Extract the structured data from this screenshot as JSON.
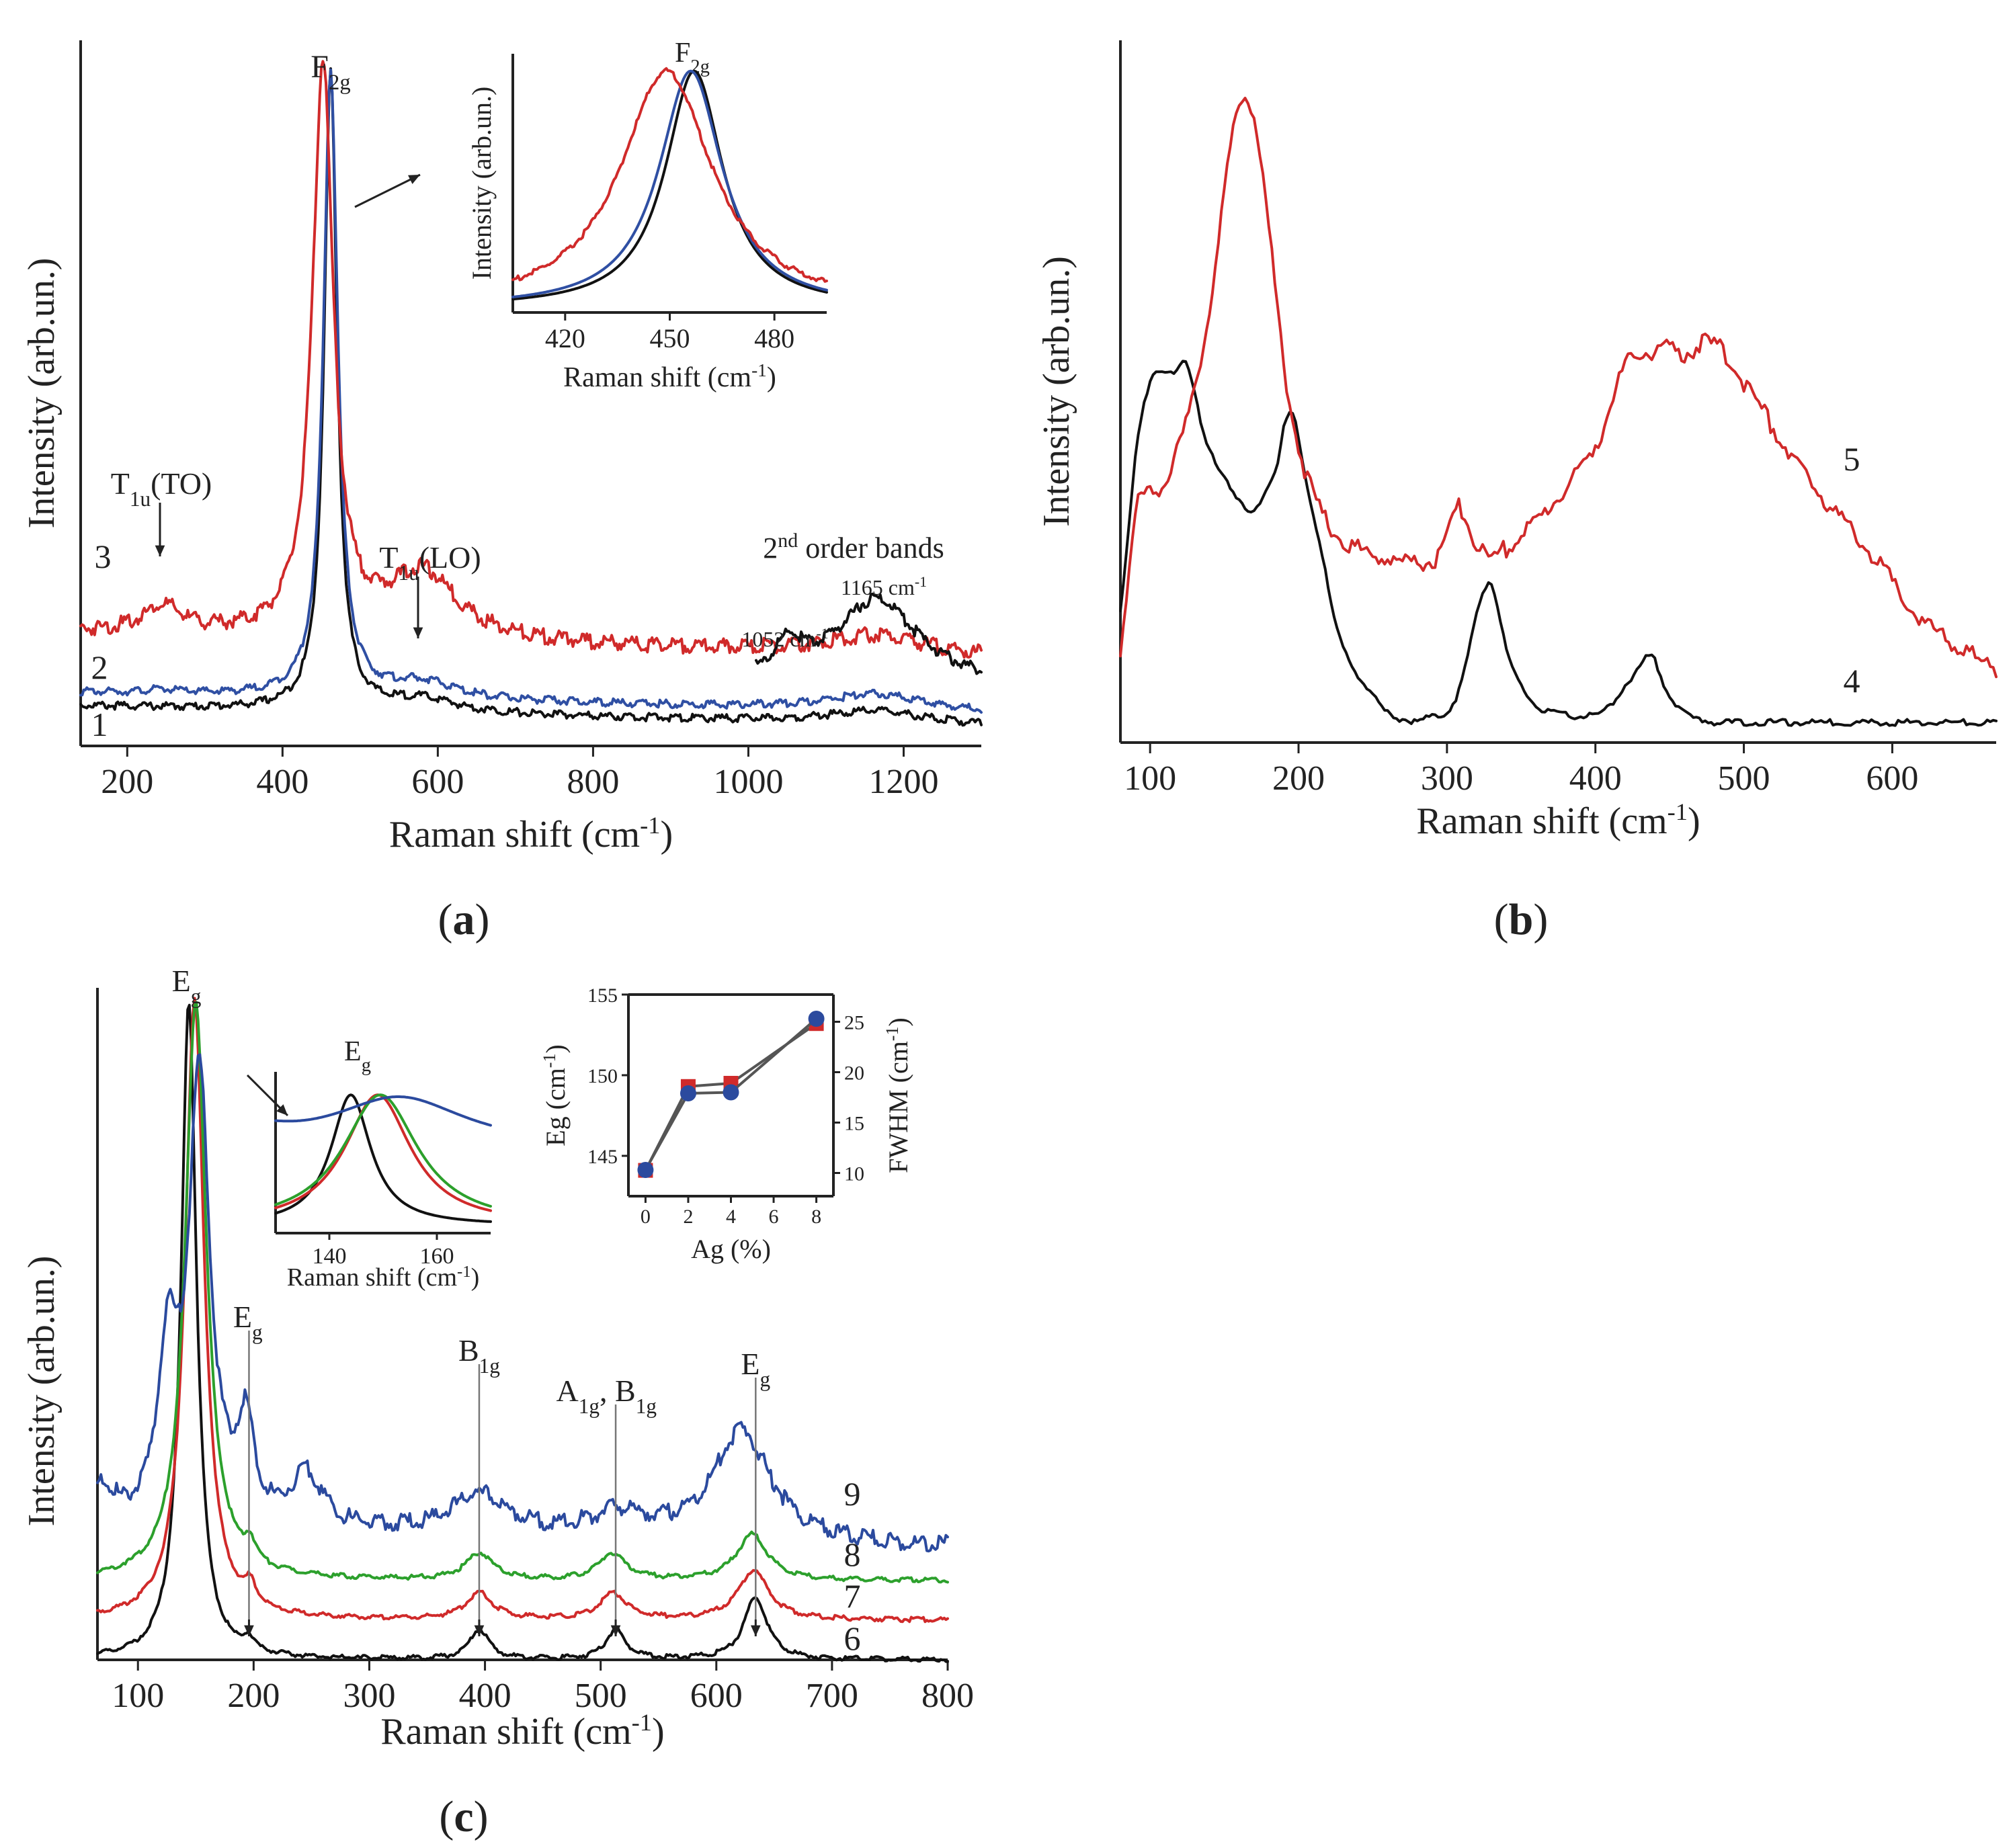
{
  "chart_data": [
    {
      "id": "a",
      "type": "line",
      "panel_label": "(a)",
      "panel_letter": "a",
      "xlabel": "Raman shift (cm⁻¹)",
      "ylabel": "Intensity (arb.un.)",
      "xlim": [
        140,
        1300
      ],
      "ylim": [
        0,
        1.06
      ],
      "xticks": [
        200,
        400,
        600,
        800,
        1000,
        1200
      ],
      "colors": {
        "1": "#111111",
        "2": "#2f4fa3",
        "3": "#d02a2a"
      },
      "series": [
        {
          "name": "1",
          "color": "#111111",
          "offset": 0.02,
          "baseline": 0.04,
          "peak_center": 462,
          "peak_width": 10,
          "peak_height": 0.96,
          "tlu_to": 0.0,
          "tlu_lo": 0.02,
          "second_order": 0.02
        },
        {
          "name": "2",
          "color": "#2f4fa3",
          "offset": 0.04,
          "baseline": 0.04,
          "peak_center": 462,
          "peak_width": 11,
          "peak_height": 0.94,
          "tlu_to": 0.005,
          "tlu_lo": 0.025,
          "second_order": 0.025
        },
        {
          "name": "3",
          "color": "#d02a2a",
          "offset": 0.12,
          "baseline": 0.05,
          "peak_center": 452,
          "peak_width": 16,
          "peak_height": 0.86,
          "tlu_to": 0.04,
          "tlu_lo": 0.1,
          "second_order": 0.03
        }
      ],
      "detail_curve": {
        "name": "2nd order bands",
        "color": "#111111",
        "x": [
          1010,
          1300
        ],
        "peaks": [
          1052,
          1165
        ]
      },
      "annotations": [
        {
          "label": "F2g",
          "main": "F",
          "sub": "2g"
        },
        {
          "label": "T1u(TO)",
          "main": "T",
          "sub": "1u",
          "tail": "(TO)"
        },
        {
          "label": "T1u(LO)",
          "main": "T",
          "sub": "1u",
          "tail": "(LO)"
        },
        {
          "label": "2nd order bands",
          "main": "2",
          "sup": "nd",
          "tail": " order bands"
        },
        {
          "label": "1052 cm-1",
          "main": "1052 cm",
          "sup": "-1"
        },
        {
          "label": "1165 cm-1",
          "main": "1165 cm",
          "sup": "-1"
        }
      ],
      "curve_labels": [
        "1",
        "2",
        "3"
      ],
      "inset": {
        "type": "line",
        "xlabel": "Raman shift (cm⁻¹)",
        "ylabel": "Intensity (arb.un.)",
        "xlim": [
          405,
          495
        ],
        "ylim": [
          0,
          1.05
        ],
        "xticks": [
          420,
          450,
          480
        ],
        "title": "F2g",
        "series": [
          {
            "name": "1",
            "color": "#111111",
            "center": 457,
            "width": 10
          },
          {
            "name": "2",
            "color": "#2f4fa3",
            "center": 456,
            "width": 11
          },
          {
            "name": "3",
            "color": "#d02a2a",
            "center": 449,
            "width": 16
          }
        ]
      }
    },
    {
      "id": "b",
      "type": "line",
      "panel_label": "(b)",
      "panel_letter": "b",
      "xlabel": "Raman shift (cm⁻¹)",
      "ylabel": "Intensity (arb.un.)",
      "xlim": [
        80,
        670
      ],
      "ylim": [
        0,
        1.05
      ],
      "xticks": [
        100,
        200,
        300,
        400,
        500,
        600
      ],
      "series": [
        {
          "name": "4",
          "color": "#111111",
          "x": [
            80,
            90,
            100,
            108,
            115,
            125,
            135,
            150,
            160,
            170,
            180,
            186,
            190,
            196,
            205,
            215,
            225,
            240,
            260,
            280,
            290,
            300,
            310,
            320,
            330,
            340,
            360,
            380,
            400,
            410,
            420,
            428,
            438,
            446,
            460,
            480,
            520,
            600,
            670
          ],
          "y": [
            0.15,
            0.46,
            0.55,
            0.56,
            0.54,
            0.6,
            0.45,
            0.4,
            0.36,
            0.33,
            0.4,
            0.38,
            0.5,
            0.52,
            0.38,
            0.3,
            0.16,
            0.1,
            0.04,
            0.03,
            0.04,
            0.04,
            0.08,
            0.2,
            0.27,
            0.12,
            0.05,
            0.04,
            0.04,
            0.05,
            0.09,
            0.1,
            0.15,
            0.08,
            0.04,
            0.03,
            0.03,
            0.03,
            0.03
          ]
        },
        {
          "name": "5",
          "color": "#d02a2a",
          "x": [
            80,
            90,
            100,
            110,
            120,
            128,
            135,
            145,
            155,
            165,
            175,
            185,
            195,
            200,
            205,
            215,
            230,
            250,
            270,
            290,
            300,
            308,
            315,
            325,
            340,
            360,
            380,
            400,
            410,
            420,
            430,
            445,
            460,
            475,
            485,
            500,
            520,
            540,
            560,
            580,
            600,
            620,
            640,
            660,
            670
          ],
          "y": [
            0.1,
            0.38,
            0.37,
            0.39,
            0.44,
            0.5,
            0.58,
            0.72,
            0.92,
            1.0,
            0.88,
            0.66,
            0.48,
            0.44,
            0.4,
            0.34,
            0.3,
            0.28,
            0.27,
            0.27,
            0.29,
            0.38,
            0.32,
            0.27,
            0.29,
            0.33,
            0.38,
            0.44,
            0.5,
            0.57,
            0.58,
            0.59,
            0.58,
            0.6,
            0.59,
            0.54,
            0.47,
            0.4,
            0.35,
            0.3,
            0.24,
            0.18,
            0.15,
            0.12,
            0.11
          ]
        }
      ],
      "curve_labels": [
        "4",
        "5"
      ]
    },
    {
      "id": "c",
      "type": "line",
      "panel_label": "(c)",
      "panel_letter": "c",
      "xlabel": "Raman shift (cm⁻¹)",
      "ylabel": "Intensity (arb.un.)",
      "xlim": [
        65,
        800
      ],
      "ylim": [
        0,
        1.02
      ],
      "xticks": [
        100,
        200,
        300,
        400,
        500,
        600,
        700,
        800
      ],
      "mode_lines_cm1": [
        196,
        395,
        513,
        634
      ],
      "series": [
        {
          "name": "6",
          "color": "#111111",
          "offset": 0.0,
          "peaks": [
            [
              144,
              1.0,
              8
            ],
            [
              196,
              0.02,
              5
            ],
            [
              395,
              0.045,
              10
            ],
            [
              513,
              0.045,
              10
            ],
            [
              634,
              0.095,
              12
            ]
          ],
          "baseline": 0.0
        },
        {
          "name": "7",
          "color": "#d02a2a",
          "offset": 0.06,
          "peaks": [
            [
              149,
              0.94,
              10
            ],
            [
              197,
              0.03,
              6
            ],
            [
              395,
              0.04,
              14
            ],
            [
              511,
              0.04,
              14
            ],
            [
              632,
              0.075,
              16
            ]
          ],
          "baseline": 0.0
        },
        {
          "name": "8",
          "color": "#2ca02c",
          "offset": 0.12,
          "peaks": [
            [
              150,
              0.88,
              11
            ],
            [
              197,
              0.03,
              6
            ],
            [
              395,
              0.04,
              14
            ],
            [
              510,
              0.04,
              14
            ],
            [
              631,
              0.07,
              16
            ]
          ],
          "baseline": 0.0
        },
        {
          "name": "9",
          "color": "#2b4a9e",
          "offset": 0.17,
          "peaks": [
            [
              70,
              0.05,
              12
            ],
            [
              126,
              0.25,
              10
            ],
            [
              153,
              0.68,
              11
            ],
            [
              193,
              0.14,
              9
            ],
            [
              246,
              0.08,
              16
            ],
            [
              395,
              0.06,
              30
            ],
            [
              515,
              0.035,
              30
            ],
            [
              622,
              0.17,
              30
            ]
          ],
          "baseline": 0.03
        }
      ],
      "annotations": [
        {
          "label": "Eg",
          "main": "E",
          "sub": "g"
        },
        {
          "label": "Eg",
          "main": "E",
          "sub": "g"
        },
        {
          "label": "B1g",
          "main": "B",
          "sub": "1g"
        },
        {
          "label": "A1g, B1g",
          "main": "A",
          "sub": "1g",
          "tail": ", ",
          "main2": "B",
          "sub2": "1g"
        },
        {
          "label": "Eg",
          "main": "E",
          "sub": "g"
        }
      ],
      "curve_labels": [
        "6",
        "7",
        "8",
        "9"
      ],
      "inset_peak": {
        "type": "line",
        "title": "Eg",
        "xlabel": "Raman shift (cm⁻¹)",
        "xlim": [
          130,
          170
        ],
        "ylim": [
          0,
          1.05
        ],
        "xticks": [
          140,
          160
        ],
        "series": [
          {
            "name": "6",
            "color": "#111111",
            "center": 144,
            "width": 4.5
          },
          {
            "name": "7",
            "color": "#d02a2a",
            "center": 149,
            "width": 7.5
          },
          {
            "name": "8",
            "color": "#2ca02c",
            "center": 149.5,
            "width": 8.5
          },
          {
            "name": "9",
            "color": "#2b4a9e",
            "center": 153,
            "width": 11
          }
        ]
      },
      "inset_trend": {
        "type": "scatter",
        "xlabel": "Ag (%)",
        "ylabel_left": "Eg (cm⁻¹)",
        "ylabel_right": "FWHM (cm⁻¹)",
        "x": [
          0,
          2,
          4,
          8
        ],
        "xlim": [
          -0.8,
          8.8
        ],
        "xticks": [
          0,
          2,
          4,
          6,
          8
        ],
        "ylim_left": [
          142.5,
          155
        ],
        "yticks_left": [
          145,
          150,
          155
        ],
        "ylim_right": [
          7.7,
          27.7
        ],
        "yticks_right": [
          10,
          15,
          20,
          25
        ],
        "series": [
          {
            "name": "Eg",
            "axis": "left",
            "color": "#d02a2a",
            "marker": "square",
            "values": [
              144.1,
              149.3,
              149.5,
              153.2
            ]
          },
          {
            "name": "FWHM",
            "axis": "right",
            "color": "#2b4a9e",
            "marker": "circle",
            "values": [
              10.3,
              17.9,
              18.0,
              25.3
            ]
          }
        ]
      }
    }
  ]
}
